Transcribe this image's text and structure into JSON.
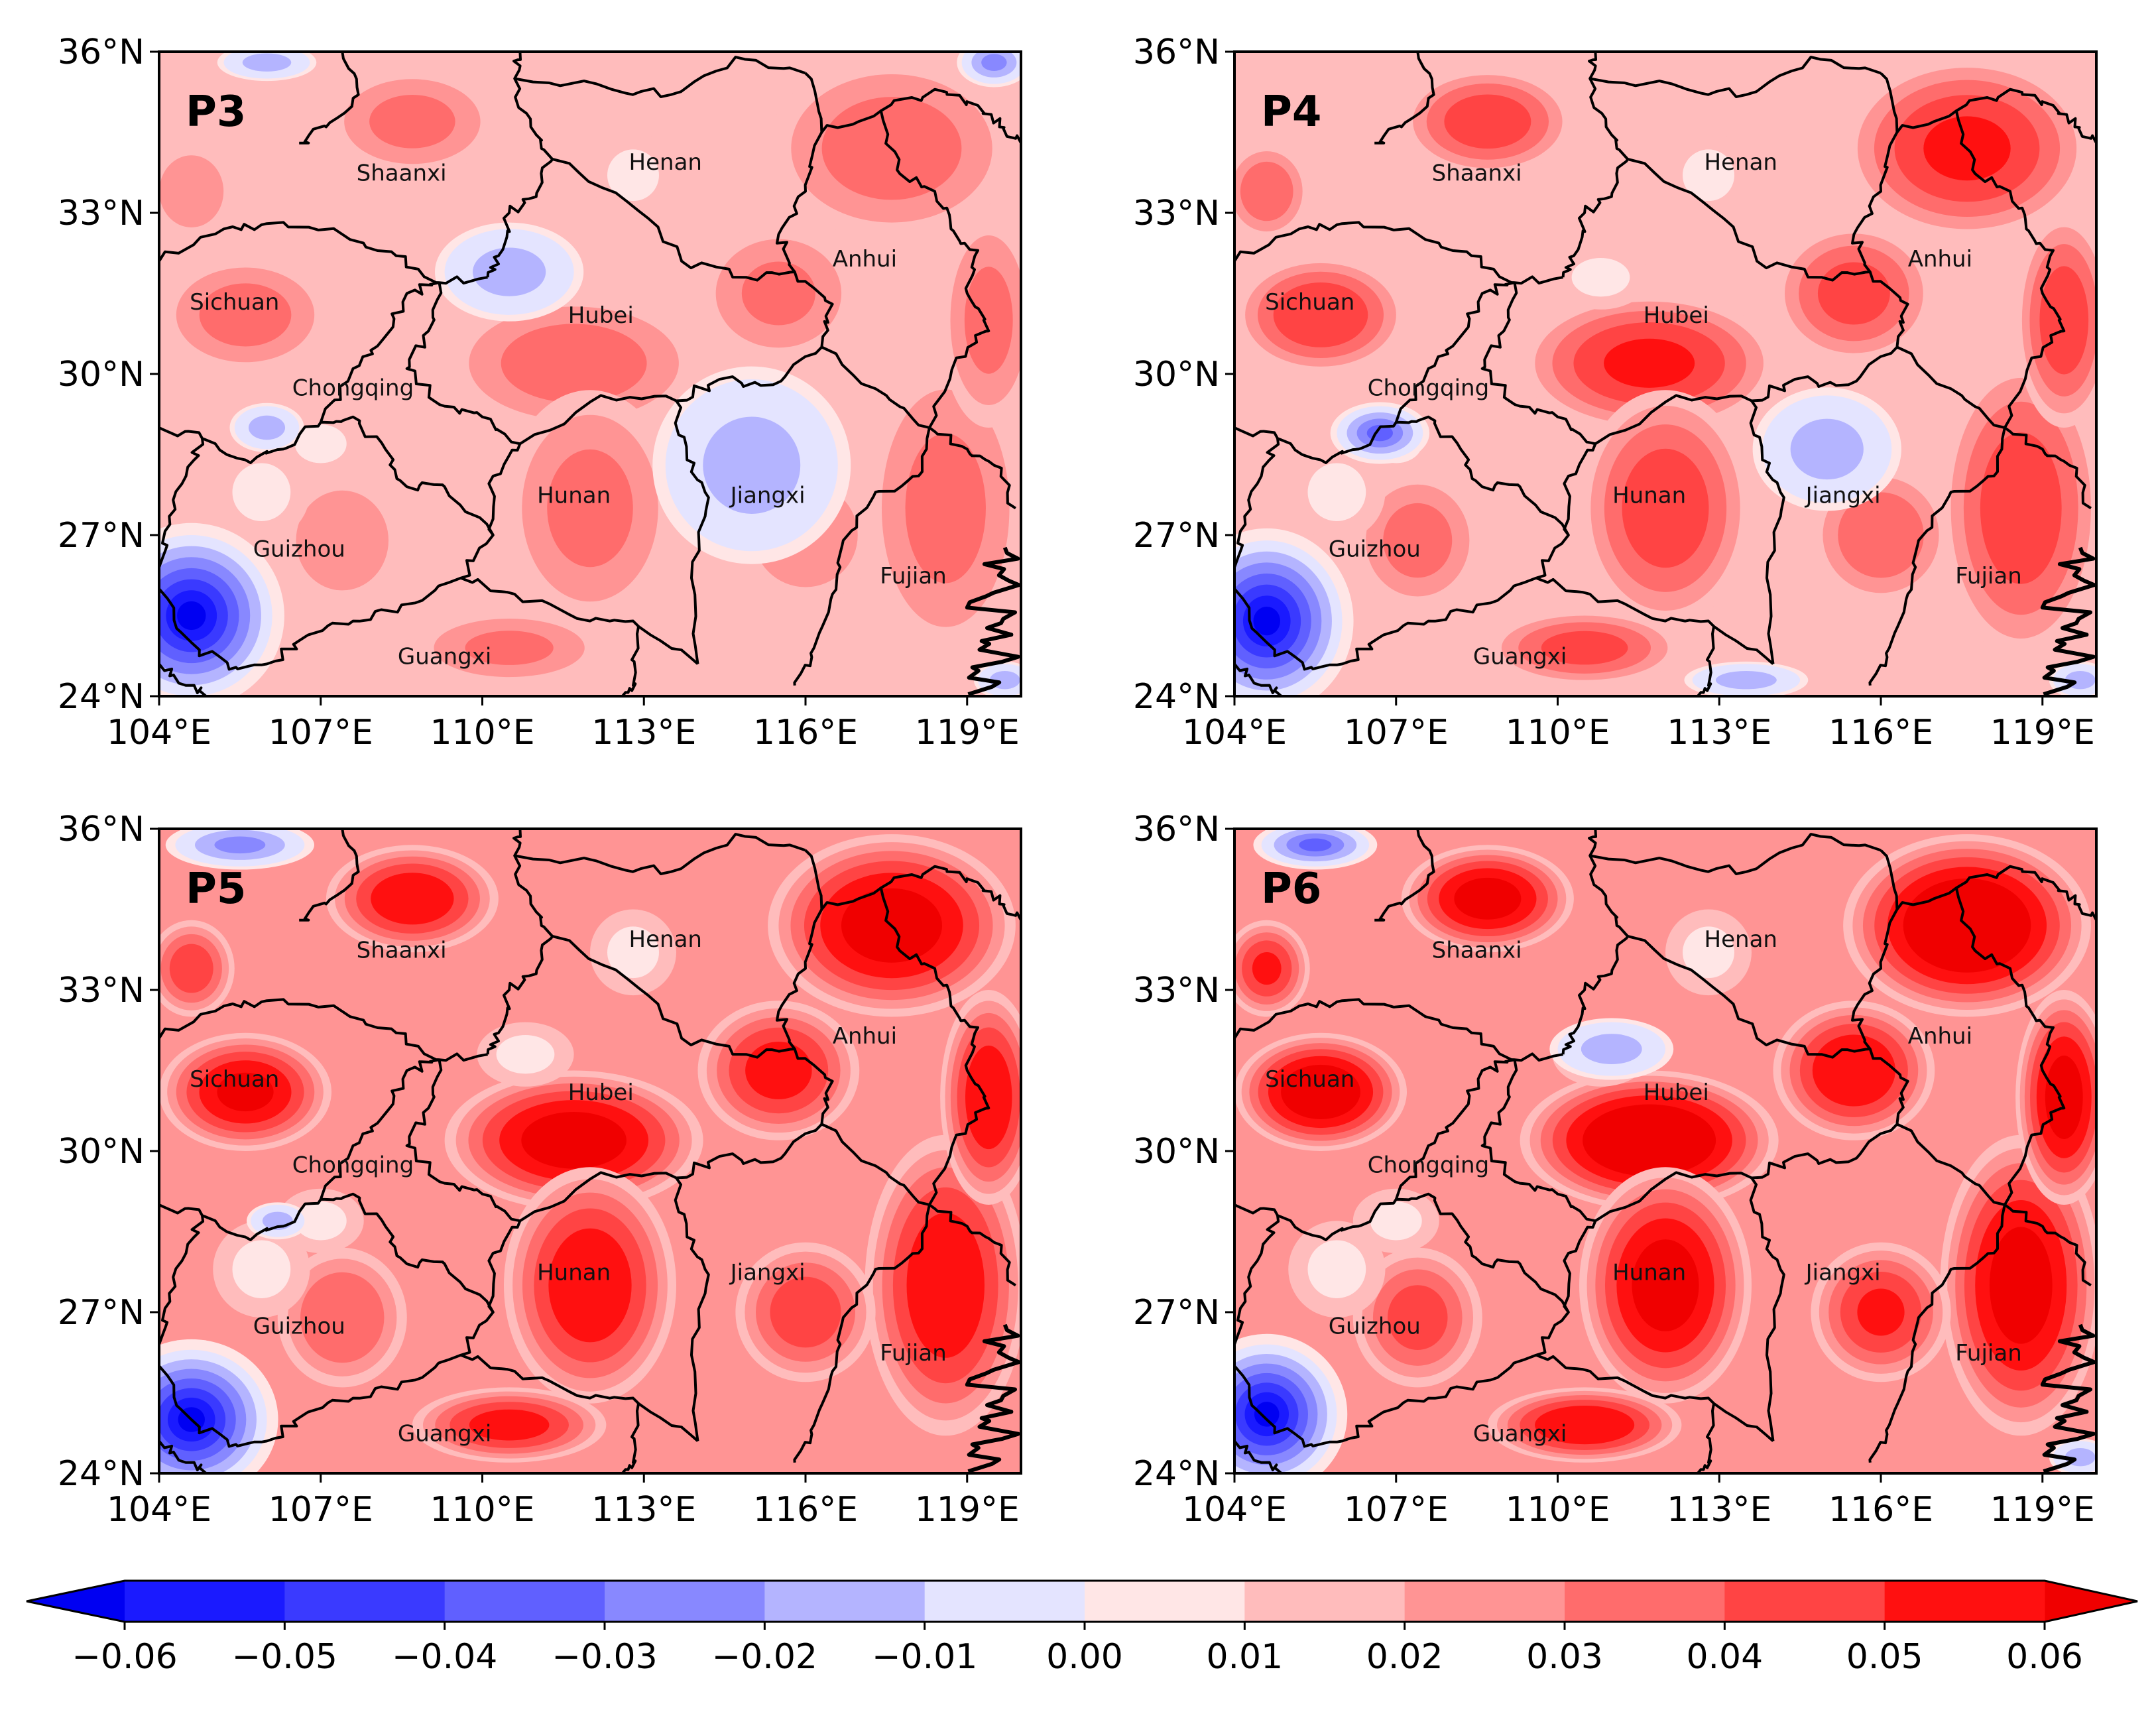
{
  "figure": {
    "panels": [
      {
        "label": "P3",
        "intensity": 0.4,
        "negative_zones": [
          {
            "lon": 104.6,
            "lat": 25.5,
            "rx": 1.5,
            "ry": 1.5,
            "value": -0.055
          },
          {
            "lon": 114.8,
            "lat": 29.0,
            "rx": 1.0,
            "ry": 0.7,
            "value": -0.03
          },
          {
            "lon": 115.0,
            "lat": 28.3,
            "rx": 1.6,
            "ry": 1.6,
            "value": -0.008
          },
          {
            "lon": 110.5,
            "lat": 31.9,
            "rx": 1.2,
            "ry": 0.8,
            "value": -0.01
          },
          {
            "lon": 106.0,
            "lat": 29.0,
            "rx": 0.6,
            "ry": 0.4,
            "value": -0.01
          },
          {
            "lon": 119.5,
            "lat": 35.8,
            "rx": 0.6,
            "ry": 0.4,
            "value": -0.02
          },
          {
            "lon": 106.0,
            "lat": 35.8,
            "rx": 0.8,
            "ry": 0.3,
            "value": -0.008
          },
          {
            "lon": 119.7,
            "lat": 24.3,
            "rx": 0.5,
            "ry": 0.3,
            "value": -0.01
          }
        ]
      },
      {
        "label": "P4",
        "intensity": 0.8,
        "negative_zones": [
          {
            "lon": 104.6,
            "lat": 25.4,
            "rx": 1.4,
            "ry": 1.5,
            "value": -0.06
          },
          {
            "lon": 106.7,
            "lat": 28.9,
            "rx": 0.8,
            "ry": 0.5,
            "value": -0.03
          },
          {
            "lon": 115.0,
            "lat": 28.6,
            "rx": 1.2,
            "ry": 1.0,
            "value": -0.01
          },
          {
            "lon": 113.5,
            "lat": 24.3,
            "rx": 1.0,
            "ry": 0.3,
            "value": -0.008
          },
          {
            "lon": 119.7,
            "lat": 24.3,
            "rx": 0.5,
            "ry": 0.3,
            "value": -0.01
          }
        ]
      },
      {
        "label": "P5",
        "intensity": 1.15,
        "negative_zones": [
          {
            "lon": 104.6,
            "lat": 25.0,
            "rx": 1.4,
            "ry": 1.3,
            "value": -0.06
          },
          {
            "lon": 105.5,
            "lat": 35.7,
            "rx": 1.2,
            "ry": 0.4,
            "value": -0.02
          },
          {
            "lon": 106.2,
            "lat": 28.7,
            "rx": 0.5,
            "ry": 0.3,
            "value": -0.008
          }
        ]
      },
      {
        "label": "P6",
        "intensity": 1.35,
        "negative_zones": [
          {
            "lon": 104.6,
            "lat": 25.1,
            "rx": 1.3,
            "ry": 1.3,
            "value": -0.06
          },
          {
            "lon": 105.5,
            "lat": 35.7,
            "rx": 1.0,
            "ry": 0.4,
            "value": -0.03
          },
          {
            "lon": 111.0,
            "lat": 31.9,
            "rx": 1.0,
            "ry": 0.5,
            "value": -0.008
          },
          {
            "lon": 119.7,
            "lat": 24.3,
            "rx": 0.5,
            "ry": 0.3,
            "value": -0.01
          }
        ]
      }
    ],
    "x_ticks": [
      "104°E",
      "107°E",
      "110°E",
      "113°E",
      "116°E",
      "119°E"
    ],
    "x_tick_values": [
      104,
      107,
      110,
      113,
      116,
      119
    ],
    "y_ticks": [
      "36°N",
      "33°N",
      "30°N",
      "27°N",
      "24°N"
    ],
    "y_tick_values": [
      36,
      33,
      30,
      27,
      24
    ],
    "extent": {
      "lon_min": 104,
      "lon_max": 120,
      "lat_min": 24,
      "lat_max": 36
    },
    "provinces": [
      {
        "name": "Shaanxi",
        "lon": 108.5,
        "lat": 33.6
      },
      {
        "name": "Henan",
        "lon": 113.4,
        "lat": 33.8
      },
      {
        "name": "Anhui",
        "lon": 117.1,
        "lat": 32.0
      },
      {
        "name": "Sichuan",
        "lon": 105.4,
        "lat": 31.2
      },
      {
        "name": "Hubei",
        "lon": 112.2,
        "lat": 30.95
      },
      {
        "name": "Chongqing",
        "lon": 107.6,
        "lat": 29.6
      },
      {
        "name": "Hunan",
        "lon": 111.7,
        "lat": 27.6
      },
      {
        "name": "Jiangxi",
        "lon": 115.3,
        "lat": 27.6
      },
      {
        "name": "Guizhou",
        "lon": 106.6,
        "lat": 26.6
      },
      {
        "name": "Fujian",
        "lon": 118.0,
        "lat": 26.1
      },
      {
        "name": "Guangxi",
        "lon": 109.3,
        "lat": 24.6
      }
    ]
  },
  "colorbar": {
    "ticks": [
      "−0.06",
      "−0.05",
      "−0.04",
      "−0.03",
      "−0.02",
      "−0.01",
      "0.00",
      "0.01",
      "0.02",
      "0.03",
      "0.04",
      "0.05",
      "0.06"
    ],
    "colors": [
      "#1a1aff",
      "#3a3aff",
      "#6060ff",
      "#8888ff",
      "#b4b4ff",
      "#e4e4ff",
      "#ffe6e6",
      "#ffbcbc",
      "#ff9494",
      "#ff6c6c",
      "#ff4444",
      "#ff1010"
    ],
    "extend_low_color": "#0000f2",
    "extend_high_color": "#f00000"
  }
}
